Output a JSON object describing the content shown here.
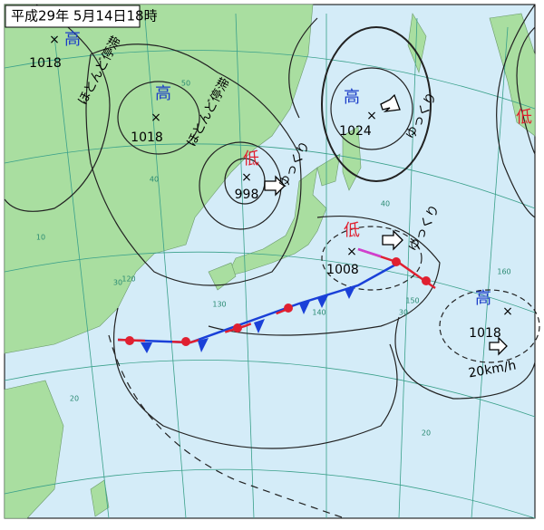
{
  "header": {
    "title": "平成29年 5月14日18時"
  },
  "systems": [
    {
      "label": "高",
      "pressure": 1018,
      "motion": "ほとんど停滞"
    },
    {
      "label": "高",
      "pressure": 1018,
      "motion": "ほとんど停滞"
    },
    {
      "label": "低",
      "pressure": 998,
      "motion": "ゆっくり"
    },
    {
      "label": "高",
      "pressure": 1024,
      "motion": "ゆっくり"
    },
    {
      "label": "低",
      "pressure": 1008,
      "motion": "ゆっくり"
    },
    {
      "label": "高",
      "pressure": 1018,
      "motion": "20km/h"
    },
    {
      "label": "低"
    }
  ],
  "grid_labels": [
    50,
    40,
    40,
    30,
    30,
    20,
    20,
    10,
    120,
    130,
    140,
    150,
    160
  ]
}
